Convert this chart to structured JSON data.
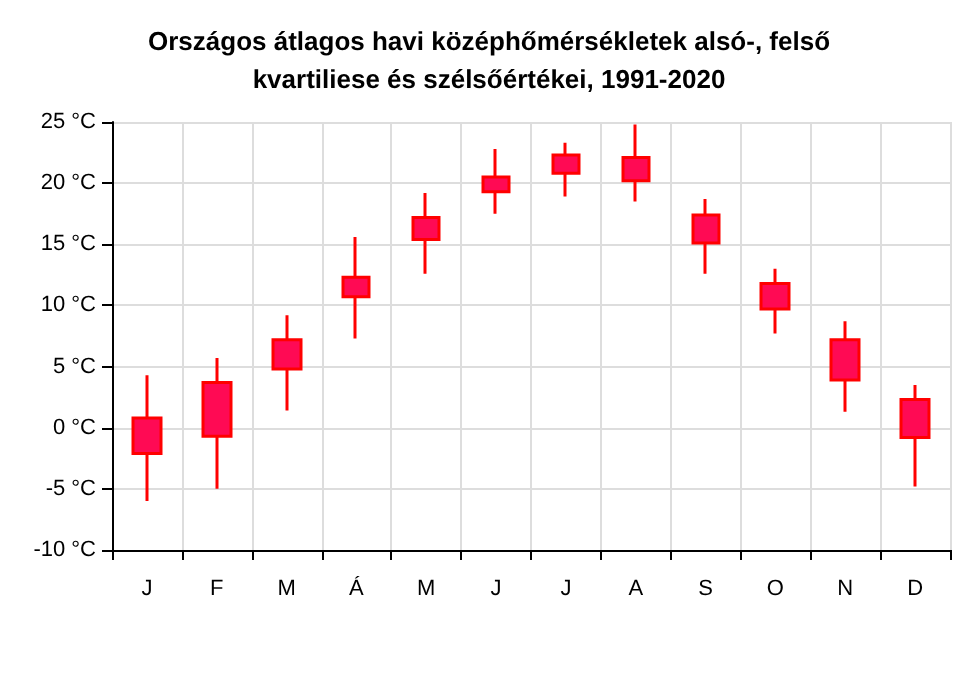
{
  "chart_data": {
    "type": "candlestick",
    "title": "Országos átlagos havi középhőmérsékletek alsó-, felső\nkvartiliese és szélsőértékei, 1991-2020",
    "categories": [
      "J",
      "F",
      "M",
      "Á",
      "M",
      "J",
      "J",
      "A",
      "S",
      "O",
      "N",
      "D"
    ],
    "ohlc": [
      [
        -2.1,
        4.3,
        -6.0,
        0.8
      ],
      [
        -0.7,
        5.7,
        -5.0,
        3.7
      ],
      [
        4.8,
        9.2,
        1.4,
        7.2
      ],
      [
        10.7,
        15.6,
        7.3,
        12.3
      ],
      [
        15.4,
        19.2,
        12.6,
        17.2
      ],
      [
        19.3,
        22.8,
        17.5,
        20.5
      ],
      [
        20.8,
        23.3,
        18.9,
        22.3
      ],
      [
        20.2,
        24.8,
        18.5,
        22.1
      ],
      [
        15.1,
        18.7,
        12.6,
        17.4
      ],
      [
        9.7,
        13.0,
        7.7,
        11.8
      ],
      [
        3.9,
        8.7,
        1.3,
        7.2
      ],
      [
        -0.8,
        3.5,
        -4.8,
        2.3
      ]
    ],
    "color": "#ff0a54",
    "ylim": [
      -10,
      25
    ],
    "yticks": [
      {
        "value": -10,
        "label": "-10 °C"
      },
      {
        "value": -5,
        "label": "-5 °C"
      },
      {
        "value": 0,
        "label": "0 °C"
      },
      {
        "value": 5,
        "label": "5 °C"
      },
      {
        "value": 10,
        "label": "10 °C"
      },
      {
        "value": 15,
        "label": "15 °C"
      },
      {
        "value": 20,
        "label": "20 °C"
      },
      {
        "value": 25,
        "label": "25 °C"
      }
    ],
    "grid": true
  }
}
